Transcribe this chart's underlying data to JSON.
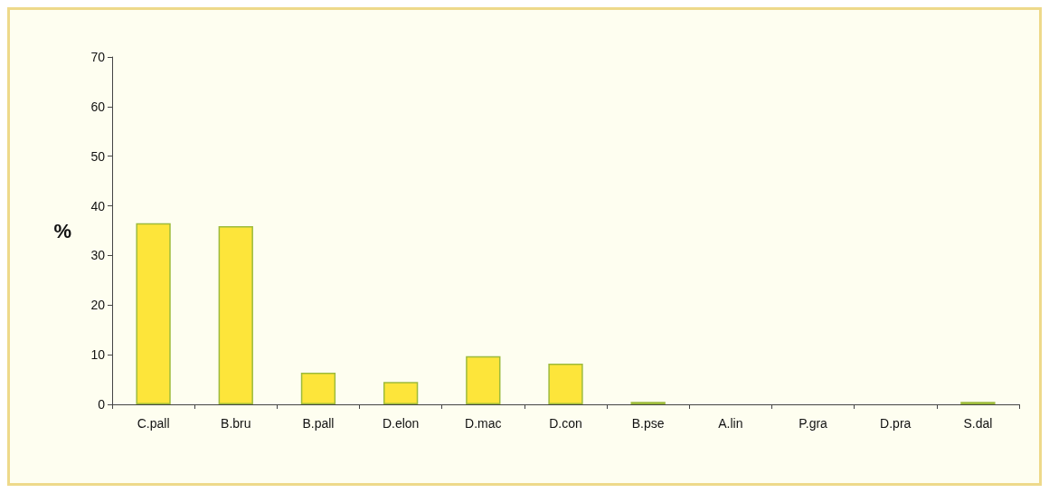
{
  "chart_data": {
    "type": "bar",
    "ylabel": "%",
    "categories": [
      "C.pall",
      "B.bru",
      "B.pall",
      "D.elon",
      "D.mac",
      "D.con",
      "B.pse",
      "A.lin",
      "P.gra",
      "D.pra",
      "S.dal"
    ],
    "values": [
      36.5,
      35.9,
      6.4,
      4.5,
      9.7,
      8.2,
      0.5,
      0,
      0,
      0,
      0.5
    ],
    "color": "#fde53a",
    "ylim": [
      0,
      70
    ],
    "yticks": [
      0,
      10,
      20,
      30,
      40,
      50,
      60,
      70
    ],
    "grid": false
  }
}
